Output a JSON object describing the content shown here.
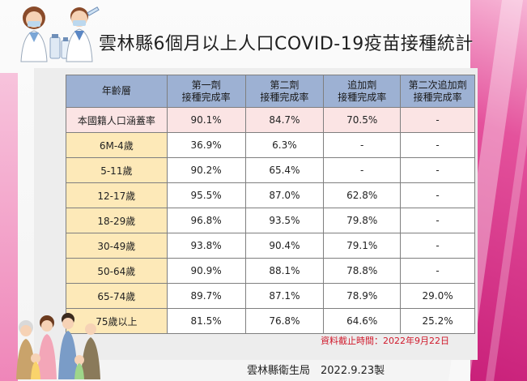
{
  "title": "雲林縣6個月以上人口COVID-19疫苗接種統計",
  "table": {
    "headers": {
      "age": "年齡層",
      "dose1": [
        "第一劑",
        "接種完成率"
      ],
      "dose2": [
        "第二劑",
        "接種完成率"
      ],
      "booster1": [
        "追加劑",
        "接種完成率"
      ],
      "booster2": [
        "第二次追加劑",
        "接種完成率"
      ]
    },
    "rows": [
      {
        "age": "本國籍人口涵蓋率",
        "dose1": "90.1%",
        "dose2": "84.7%",
        "booster1": "70.5%",
        "booster2": "-"
      },
      {
        "age": "6M-4歲",
        "dose1": "36.9%",
        "dose2": "6.3%",
        "booster1": "-",
        "booster2": "-"
      },
      {
        "age": "5-11歲",
        "dose1": "90.2%",
        "dose2": "65.4%",
        "booster1": "-",
        "booster2": "-"
      },
      {
        "age": "12-17歲",
        "dose1": "95.5%",
        "dose2": "87.0%",
        "booster1": "62.8%",
        "booster2": "-"
      },
      {
        "age": "18-29歲",
        "dose1": "96.8%",
        "dose2": "93.5%",
        "booster1": "79.8%",
        "booster2": "-"
      },
      {
        "age": "30-49歲",
        "dose1": "93.8%",
        "dose2": "90.4%",
        "booster1": "79.1%",
        "booster2": "-"
      },
      {
        "age": "50-64歲",
        "dose1": "90.9%",
        "dose2": "88.1%",
        "booster1": "78.8%",
        "booster2": "-"
      },
      {
        "age": "65-74歲",
        "dose1": "89.7%",
        "dose2": "87.1%",
        "booster1": "78.9%",
        "booster2": "29.0%"
      },
      {
        "age": "75歲以上",
        "dose1": "81.5%",
        "dose2": "76.8%",
        "booster1": "64.6%",
        "booster2": "25.2%"
      }
    ]
  },
  "deadline_note": "資料截止時間：2022年9月22日",
  "footer": "雲林縣衛生局　2022.9.23製",
  "colors": {
    "header_bg": "#9db1d3",
    "national_row_bg": "#fbe4e4",
    "age_col_bg": "#fde9b8",
    "deadline_text": "#d0192b",
    "accent_pink": "#e4529c"
  },
  "illustrations": {
    "top_left": "doctors-illustration",
    "bottom_left": "family-illustration"
  }
}
